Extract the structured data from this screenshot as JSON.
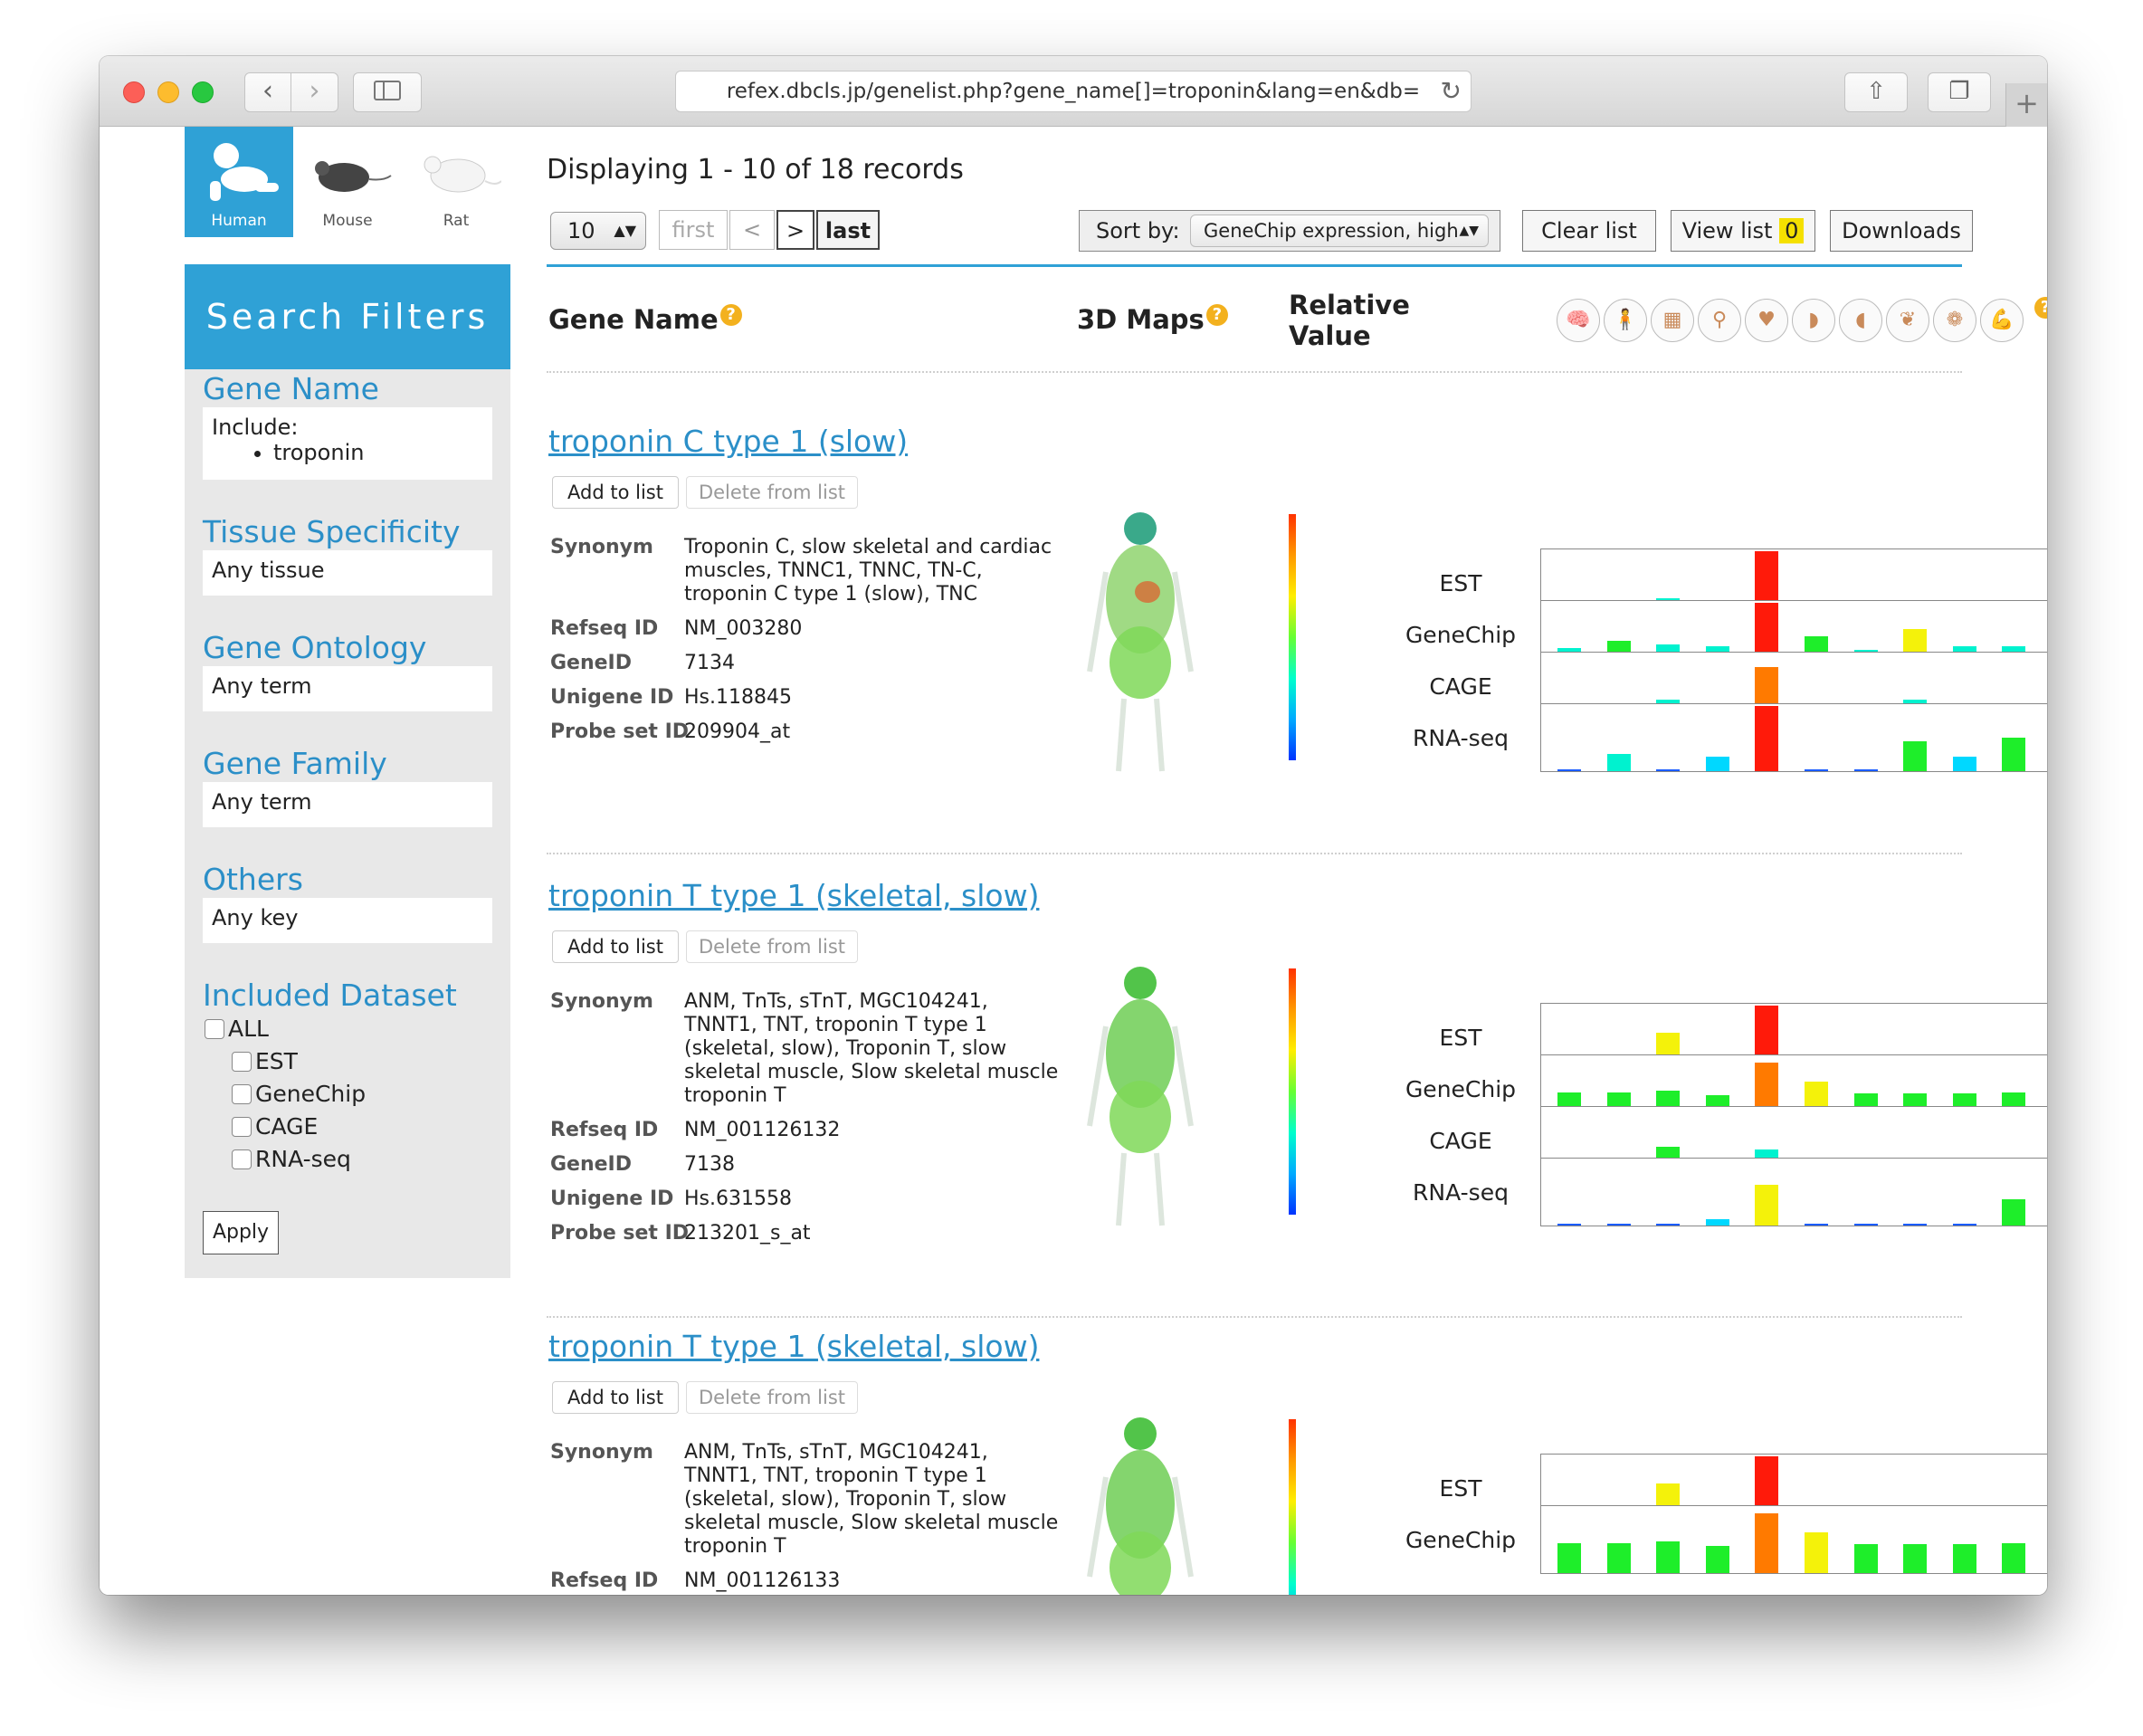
{
  "browser": {
    "url": "refex.dbcls.jp/genelist.php?gene_name[]=troponin&lang=en&db=",
    "back": "‹",
    "forward": "›",
    "reload": "↻",
    "share": "⇧",
    "tabs": "❐",
    "new_tab": "+"
  },
  "species": [
    {
      "label": "Human",
      "icon": "human-baby-icon",
      "active": true
    },
    {
      "label": "Mouse",
      "icon": "mouse-icon",
      "active": false
    },
    {
      "label": "Rat",
      "icon": "rat-icon",
      "active": false
    }
  ],
  "filters": {
    "heading": "Search Filters",
    "gene_name": {
      "title": "Gene Name",
      "include_label": "Include:",
      "terms": [
        "troponin"
      ]
    },
    "tissue": {
      "title": "Tissue Specificity",
      "value": "Any tissue"
    },
    "ontology": {
      "title": "Gene Ontology",
      "value": "Any term"
    },
    "family": {
      "title": "Gene Family",
      "value": "Any term"
    },
    "others": {
      "title": "Others",
      "value": "Any key"
    },
    "dataset": {
      "title": "Included Dataset",
      "all": "ALL",
      "items": [
        "EST",
        "GeneChip",
        "CAGE",
        "RNA-seq"
      ]
    },
    "apply": "Apply"
  },
  "results": {
    "displaying": "Displaying 1 - 10 of 18 records",
    "per_page": "10",
    "pager": {
      "first": "first",
      "prev": "<",
      "next": ">",
      "last": "last"
    },
    "sort_label": "Sort by:",
    "sort_value": "GeneChip expression, high",
    "clear": "Clear list",
    "view_list": "View list",
    "view_count": "0",
    "downloads": "Downloads",
    "col_gene_name": "Gene Name",
    "col_3d_maps": "3D Maps",
    "col_relative_1": "Relative",
    "col_relative_2": "Value",
    "help": "?",
    "organ_icons": [
      "brain-icon",
      "body-icon",
      "skin-icon",
      "reproductive-icon",
      "heart-icon",
      "stomach-icon",
      "liver-icon",
      "lung-icon",
      "kidney-icon",
      "muscle-icon"
    ],
    "add_label": "Add to list",
    "delete_label": "Delete from list",
    "key_synonym": "Synonym",
    "key_refseq": "Refseq ID",
    "key_geneid": "GeneID",
    "key_unigene": "Unigene ID",
    "key_probe": "Probe set ID",
    "datasets": [
      "EST",
      "GeneChip",
      "CAGE",
      "RNA-seq"
    ]
  },
  "genes": [
    {
      "name": "troponin C type 1 (slow)",
      "synonym": "Troponin C, slow skeletal and cardiac muscles, TNNC1, TNNC, TN-C, troponin C type 1 (slow), TNC",
      "refseq": "NM_003280",
      "geneid": "7134",
      "unigene": "Hs.118845",
      "probe": "209904_at",
      "bars": {
        "EST": [
          0.03,
          0.03,
          0.28,
          0.03,
          1.0,
          0.03,
          0.03,
          0.14,
          0.0,
          0.03
        ],
        "GeneChip": [
          0.3,
          0.42,
          0.36,
          0.34,
          1.0,
          0.48,
          0.28,
          0.6,
          0.34,
          0.34
        ],
        "CAGE": [
          0.03,
          0.14,
          0.3,
          0.08,
          0.8,
          0.06,
          0.03,
          0.3,
          0.14,
          0.12
        ],
        "RNA-seq": [
          0.03,
          0.26,
          0.03,
          0.22,
          1.0,
          0.03,
          0.03,
          0.46,
          0.22,
          0.52
        ]
      }
    },
    {
      "name": "troponin T type 1 (skeletal, slow)",
      "synonym": "ANM, TnTs, sTnT, MGC104241, TNNT1, TNT, troponin T type 1 (skeletal, slow), Troponin T, slow skeletal muscle, Slow skeletal muscle troponin T",
      "refseq": "NM_001126132",
      "geneid": "7138",
      "unigene": "Hs.631558",
      "probe": "213201_s_at",
      "bars": {
        "EST": [
          0.03,
          0.0,
          0.58,
          0.03,
          1.0,
          0.03,
          0.06,
          0.0,
          0.0,
          0.03
        ],
        "GeneChip": [
          0.46,
          0.46,
          0.48,
          0.42,
          0.92,
          0.62,
          0.44,
          0.44,
          0.44,
          0.46
        ],
        "CAGE": [
          0.03,
          0.2,
          0.42,
          0.06,
          0.38,
          0.08,
          0.03,
          0.03,
          0.04,
          0.12
        ],
        "RNA-seq": [
          0.03,
          0.03,
          0.03,
          0.1,
          0.62,
          0.03,
          0.03,
          0.03,
          0.03,
          0.4
        ]
      }
    },
    {
      "name": "troponin T type 1 (skeletal, slow)",
      "synonym": "ANM, TnTs, sTnT, MGC104241, TNNT1, TNT, troponin T type 1 (skeletal, slow), Troponin T, slow skeletal muscle, Slow skeletal muscle troponin T",
      "refseq": "NM_001126133",
      "bars": {
        "EST": [
          0.03,
          0.0,
          0.58,
          0.03,
          1.0,
          0.03,
          0.06,
          0.0,
          0.0,
          0.03
        ],
        "GeneChip": [
          0.46,
          0.46,
          0.48,
          0.42,
          0.92,
          0.62,
          0.44,
          0.44,
          0.44,
          0.46
        ]
      }
    }
  ],
  "colors": {
    "accent": "#2fa1d6",
    "link": "#2b8fc8",
    "help": "#f3b11e"
  }
}
